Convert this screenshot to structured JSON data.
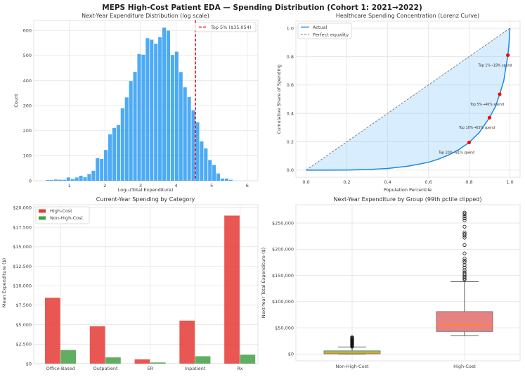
{
  "figure": {
    "title": "MEPS High-Cost Patient EDA — Spending Distribution (Cohort 1: 2021→2022)"
  },
  "chart_data": [
    {
      "type": "bar",
      "subtype": "histogram",
      "title": "Next-Year Expenditure Distribution (log scale)",
      "xlabel": "Log₁₀(Total Expenditure)",
      "ylabel": "Count",
      "bin_start": 0.33,
      "bin_width": 0.117,
      "counts": [
        3,
        3,
        5,
        4,
        4,
        13,
        7,
        13,
        20,
        14,
        27,
        40,
        90,
        87,
        123,
        185,
        211,
        222,
        289,
        333,
        398,
        435,
        506,
        503,
        569,
        563,
        547,
        573,
        611,
        599,
        502,
        515,
        434,
        373,
        334,
        281,
        233,
        157,
        129,
        83,
        63,
        29,
        9,
        9,
        4
      ],
      "xlim": [
        0.0,
        6.3
      ],
      "ylim": [
        0,
        640
      ],
      "xticks": [
        "1",
        "2",
        "3",
        "4",
        "5",
        "6"
      ],
      "xtick_values": [
        1,
        2,
        3,
        4,
        5,
        6
      ],
      "yticks": [
        "0",
        "100",
        "200",
        "300",
        "400",
        "500",
        "600"
      ],
      "ytick_values": [
        0,
        100,
        200,
        300,
        400,
        500,
        600
      ],
      "threshold": {
        "value": 4.545,
        "label": "Top 5% ($35,054)",
        "color": "#e31a1c"
      },
      "bar_color": "#2196f3",
      "grid": true,
      "legend": "top-right"
    },
    {
      "type": "line",
      "title": "Healthcare Spending Concentration (Lorenz Curve)",
      "xlabel": "Population Percentile",
      "ylabel": "Cumulative Share of Spending",
      "series": [
        {
          "name": "Actual",
          "color": "#1e88e5",
          "x": [
            0,
            0.1,
            0.2,
            0.3,
            0.4,
            0.5,
            0.6,
            0.65,
            0.7,
            0.75,
            0.8,
            0.85,
            0.9,
            0.93,
            0.95,
            0.97,
            0.99,
            0.995,
            1.0
          ],
          "y": [
            0,
            0,
            0.001,
            0.004,
            0.012,
            0.028,
            0.055,
            0.078,
            0.107,
            0.145,
            0.195,
            0.265,
            0.37,
            0.45,
            0.535,
            0.63,
            0.81,
            0.88,
            1.0
          ]
        },
        {
          "name": "Perfect equality",
          "color": "#777777",
          "x": [
            0,
            1
          ],
          "y": [
            0,
            1
          ]
        }
      ],
      "markers": [
        {
          "x": 0.99,
          "y": 0.81,
          "label": "Top 1%→19% spend"
        },
        {
          "x": 0.95,
          "y": 0.535,
          "label": "Top 5%→46% spend"
        },
        {
          "x": 0.9,
          "y": 0.37,
          "label": "Top 10%→63% spend"
        },
        {
          "x": 0.8,
          "y": 0.195,
          "label": "Top 20%→81% spend"
        }
      ],
      "xlim": [
        -0.05,
        1.05
      ],
      "ylim": [
        -0.05,
        1.05
      ],
      "xticks": [
        "0.0",
        "0.2",
        "0.4",
        "0.6",
        "0.8",
        "1.0"
      ],
      "xtick_values": [
        0,
        0.2,
        0.4,
        0.6,
        0.8,
        1.0
      ],
      "yticks": [
        "0.0",
        "0.2",
        "0.4",
        "0.6",
        "0.8",
        "1.0"
      ],
      "ytick_values": [
        0,
        0.2,
        0.4,
        0.6,
        0.8,
        1.0
      ],
      "grid": true,
      "legend": "top-left"
    },
    {
      "type": "bar",
      "title": "Current-Year Spending by Category",
      "xlabel": "",
      "ylabel": "Mean Expenditure ($)",
      "categories": [
        "Office-Based",
        "Outpatient",
        "ER",
        "Inpatient",
        "Rx"
      ],
      "series": [
        {
          "name": "High-Cost",
          "color": "#e53935",
          "values": [
            8450,
            4800,
            550,
            5520,
            19000
          ]
        },
        {
          "name": "Non-High-Cost",
          "color": "#43a047",
          "values": [
            1750,
            800,
            150,
            950,
            1150
          ]
        }
      ],
      "ylim": [
        0,
        20000
      ],
      "yticks": [
        "$0",
        "$2,500",
        "$5,000",
        "$7,500",
        "$10,000",
        "$12,500",
        "$15,000",
        "$17,500",
        "$20,000"
      ],
      "ytick_values": [
        0,
        2500,
        5000,
        7500,
        10000,
        12500,
        15000,
        17500,
        20000
      ],
      "grid": true,
      "legend": "top-left"
    },
    {
      "type": "box",
      "title": "Next-Year Expenditure by Group (99th pctile clipped)",
      "xlabel": "",
      "ylabel": "Next-Year Total Expenditure ($)",
      "categories": [
        "Non-High-Cost",
        "High-Cost"
      ],
      "boxes": [
        {
          "name": "Non-High-Cost",
          "color": "#8bc34a",
          "whisker_low": 0,
          "q1": 300,
          "median": 2000,
          "q3": 6000,
          "whisker_high": 13500,
          "outliers": [
            14000,
            15000,
            16000,
            17000,
            18000,
            19000,
            20000,
            21000,
            22000,
            23000,
            24000,
            25000,
            26000,
            27000,
            28000,
            29000,
            30000,
            31000,
            32000
          ]
        },
        {
          "name": "High-Cost",
          "color": "#e57373",
          "whisker_low": 35000,
          "q1": 43000,
          "median": 56000,
          "q3": 81000,
          "whisker_high": 138000,
          "outliers": [
            142000,
            144000,
            147000,
            150000,
            153000,
            156000,
            160000,
            165000,
            170000,
            175000,
            178000,
            182000,
            192000,
            208000,
            222000,
            226000,
            229000,
            232000,
            243000,
            255000,
            259000,
            263000,
            267000,
            270000
          ]
        }
      ],
      "median_color": "#ff8f00",
      "ylim": [
        -13000,
        285000
      ],
      "yticks": [
        "$0",
        "$50,000",
        "$100,000",
        "$150,000",
        "$200,000",
        "$250,000"
      ],
      "ytick_values": [
        0,
        50000,
        100000,
        150000,
        200000,
        250000
      ],
      "grid": true
    }
  ]
}
